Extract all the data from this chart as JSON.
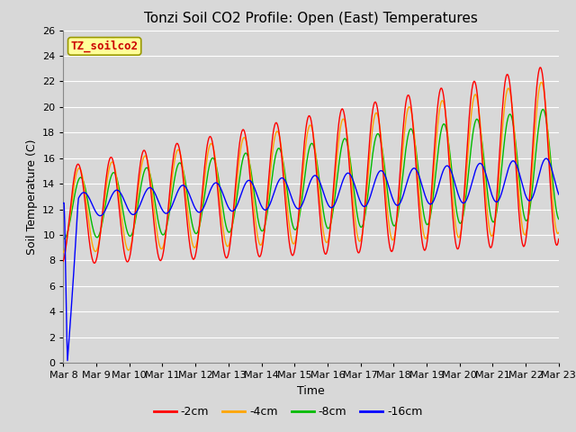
{
  "title": "Tonzi Soil CO2 Profile: Open (East) Temperatures",
  "xlabel": "Time",
  "ylabel": "Soil Temperature (C)",
  "ylim": [
    0,
    26
  ],
  "yticks": [
    0,
    2,
    4,
    6,
    8,
    10,
    12,
    14,
    16,
    18,
    20,
    22,
    24,
    26
  ],
  "xtick_labels": [
    "Mar 8",
    "Mar 9",
    "Mar 10",
    "Mar 11",
    "Mar 12",
    "Mar 13",
    "Mar 14",
    "Mar 15",
    "Mar 16",
    "Mar 17",
    "Mar 18",
    "Mar 19",
    "Mar 20",
    "Mar 21",
    "Mar 22",
    "Mar 23"
  ],
  "series_colors": [
    "#ff0000",
    "#ffa500",
    "#00bb00",
    "#0000ff"
  ],
  "series_labels": [
    "-2cm",
    "-4cm",
    "-8cm",
    "-16cm"
  ],
  "background_color": "#d8d8d8",
  "plot_bg_color": "#d8d8d8",
  "legend_box_color": "#ffff99",
  "legend_box_edge": "#999900",
  "legend_text": "TZ_soilco2",
  "legend_text_color": "#cc0000",
  "grid_color": "#ffffff",
  "title_fontsize": 11,
  "axis_label_fontsize": 9,
  "tick_fontsize": 8
}
